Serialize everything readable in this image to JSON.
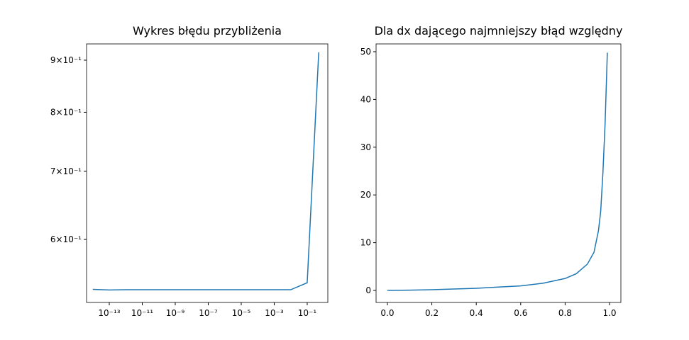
{
  "chart_data": [
    {
      "type": "line",
      "title": "Wykres błędu przybliżenia",
      "xscale": "log",
      "yscale": "log",
      "x": [
        1e-14,
        1e-13,
        1e-12,
        1e-11,
        1e-10,
        1e-09,
        1e-08,
        1e-07,
        1e-06,
        1e-05,
        0.0001,
        0.001,
        0.01,
        0.1,
        0.5
      ],
      "series": [
        {
          "color": "#1f77b4",
          "values": [
            0.536,
            0.5352,
            0.5355,
            0.5355,
            0.5355,
            0.5355,
            0.5355,
            0.5355,
            0.5355,
            0.5355,
            0.5355,
            0.5355,
            0.5355,
            0.544,
            0.916
          ]
        }
      ],
      "xlim": [
        4.2e-15,
        1.78
      ],
      "ylim": [
        0.5203,
        0.9337
      ],
      "xticks": [
        {
          "value": 1e-13,
          "label": "10⁻¹³"
        },
        {
          "value": 1e-11,
          "label": "10⁻¹¹"
        },
        {
          "value": 1e-09,
          "label": "10⁻⁹"
        },
        {
          "value": 1e-07,
          "label": "10⁻⁷"
        },
        {
          "value": 1e-05,
          "label": "10⁻⁵"
        },
        {
          "value": 0.001,
          "label": "10⁻³"
        },
        {
          "value": 0.1,
          "label": "10⁻¹"
        }
      ],
      "yticks": [
        {
          "value": 0.6,
          "label": "6×10⁻¹"
        },
        {
          "value": 0.7,
          "label": "7×10⁻¹"
        },
        {
          "value": 0.8,
          "label": "8×10⁻¹"
        },
        {
          "value": 0.9,
          "label": "9×10⁻¹"
        }
      ]
    },
    {
      "type": "line",
      "title": "Dla dx dającego najmniejszy błąd względny",
      "x": [
        0,
        0.1,
        0.2,
        0.3,
        0.4,
        0.5,
        0.6,
        0.7,
        0.8,
        0.85,
        0.9,
        0.93,
        0.95,
        0.96,
        0.97,
        0.98,
        0.99
      ],
      "series": [
        {
          "color": "#1f77b4",
          "values": [
            0,
            0.05,
            0.15,
            0.3,
            0.45,
            0.7,
            0.95,
            1.5,
            2.5,
            3.5,
            5.5,
            8,
            12.5,
            16.5,
            24.5,
            35,
            49.8
          ]
        }
      ],
      "xlim": [
        -0.051,
        1.051
      ],
      "ylim": [
        -2.52,
        51.63
      ],
      "xticks": [
        {
          "value": 0,
          "label": "0.0"
        },
        {
          "value": 0.2,
          "label": "0.2"
        },
        {
          "value": 0.4,
          "label": "0.4"
        },
        {
          "value": 0.6,
          "label": "0.6"
        },
        {
          "value": 0.8,
          "label": "0.8"
        },
        {
          "value": 1,
          "label": "1.0"
        }
      ],
      "yticks": [
        0,
        10,
        20,
        30,
        40,
        50
      ]
    }
  ]
}
